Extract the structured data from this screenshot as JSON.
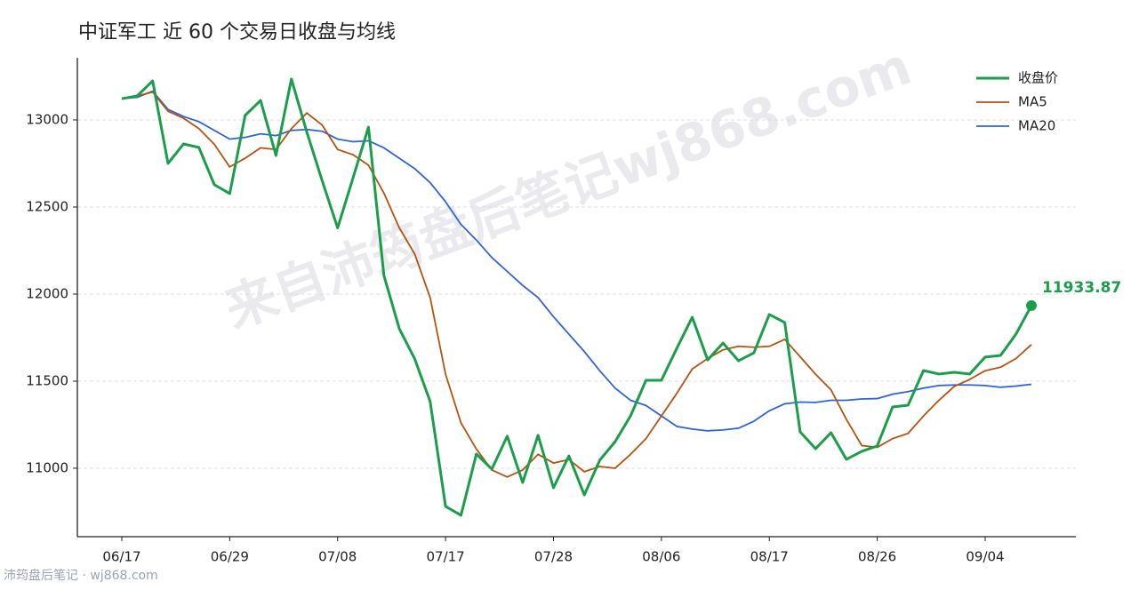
{
  "chart_data": {
    "type": "line",
    "title": "中证军工 近 60 个交易日收盘与均线",
    "watermark": "来自沛筠盘后笔记wj868.com",
    "footer": "沛筠盘后笔记 · wj868.com",
    "categories": [
      "06/17",
      null,
      null,
      null,
      null,
      null,
      null,
      "06/29",
      null,
      null,
      null,
      null,
      null,
      null,
      "07/08",
      null,
      null,
      null,
      null,
      null,
      null,
      "07/17",
      null,
      null,
      null,
      null,
      null,
      null,
      "07/28",
      null,
      null,
      null,
      null,
      null,
      null,
      "08/06",
      null,
      null,
      null,
      null,
      null,
      null,
      "08/17",
      null,
      null,
      null,
      null,
      null,
      null,
      "08/26",
      null,
      null,
      null,
      null,
      null,
      null,
      "09/04",
      null,
      null,
      null
    ],
    "ylim": [
      10607,
      13357
    ],
    "yticks": [
      11000,
      11500,
      12000,
      12500,
      13000
    ],
    "grid": true,
    "legend": "upper right",
    "series": [
      {
        "name": "收盘价",
        "color": "#1a9e4a",
        "width": 3,
        "values": [
          13122,
          13138,
          13224,
          12750,
          12862,
          12842,
          12628,
          12577,
          13026,
          13112,
          12796,
          13235,
          12930,
          12650,
          12380,
          12668,
          12959,
          12107,
          11801,
          11628,
          11383,
          10781,
          10730,
          11082,
          10995,
          11184,
          10918,
          11189,
          10888,
          11071,
          10847,
          11046,
          11153,
          11301,
          11505,
          11505,
          11689,
          11867,
          11622,
          11719,
          11617,
          11663,
          11883,
          11837,
          11209,
          11112,
          11204,
          11051,
          11097,
          11128,
          11352,
          11362,
          11561,
          11541,
          11551,
          11541,
          11638,
          11648,
          11770,
          11933.87
        ]
      },
      {
        "name": "MA5",
        "color": "#b5530f",
        "width": 1.8,
        "values": [
          13122,
          13138,
          13160,
          13050,
          13010,
          12950,
          12860,
          12730,
          12780,
          12840,
          12830,
          12950,
          13040,
          12970,
          12830,
          12800,
          12740,
          12580,
          12380,
          12230,
          11980,
          11540,
          11260,
          11110,
          10990,
          10950,
          10990,
          11080,
          11030,
          11050,
          10980,
          11010,
          11000,
          11080,
          11170,
          11300,
          11430,
          11570,
          11630,
          11680,
          11700,
          11695,
          11700,
          11740,
          11640,
          11540,
          11450,
          11280,
          11130,
          11120,
          11170,
          11200,
          11300,
          11390,
          11470,
          11510,
          11560,
          11580,
          11630,
          11710
        ]
      },
      {
        "name": "MA20",
        "color": "#2f64d8",
        "width": 1.8,
        "values": [
          13122,
          13130,
          13165,
          13060,
          13020,
          12990,
          12940,
          12890,
          12900,
          12920,
          12910,
          12940,
          12945,
          12935,
          12890,
          12875,
          12880,
          12840,
          12780,
          12720,
          12640,
          12530,
          12400,
          12310,
          12210,
          12130,
          12050,
          11980,
          11870,
          11770,
          11670,
          11560,
          11460,
          11390,
          11360,
          11300,
          11240,
          11225,
          11215,
          11220,
          11230,
          11270,
          11330,
          11370,
          11380,
          11378,
          11390,
          11390,
          11398,
          11400,
          11425,
          11440,
          11460,
          11475,
          11478,
          11478,
          11475,
          11465,
          11472,
          11482
        ]
      }
    ]
  }
}
